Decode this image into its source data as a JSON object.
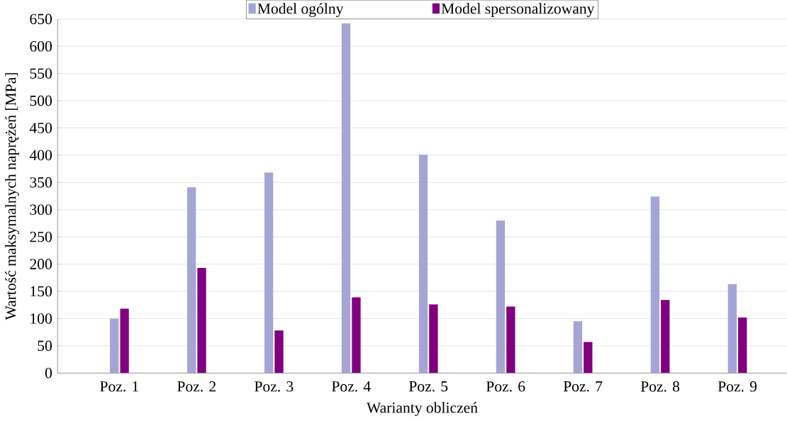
{
  "chart_data": {
    "type": "bar",
    "xlabel": "Warianty obliczeń",
    "ylabel": "Wartość maksymalnych naprężeń [MPa]",
    "categories": [
      "Poz. 1",
      "Poz. 2",
      "Poz. 3",
      "Poz. 4",
      "Poz. 5",
      "Poz. 6",
      "Poz. 7",
      "Poz. 8",
      "Poz. 9"
    ],
    "series": [
      {
        "name": "Model ogólny",
        "color": "#a5a5d5",
        "values": [
          100,
          341,
          368,
          642,
          401,
          280,
          95,
          324,
          163
        ]
      },
      {
        "name": "Model spersonalizowany",
        "color": "#800080",
        "values": [
          118,
          193,
          78,
          139,
          126,
          122,
          57,
          134,
          102
        ]
      }
    ],
    "ylim": [
      0,
      650
    ],
    "yticks": [
      0,
      50,
      100,
      150,
      200,
      250,
      300,
      350,
      400,
      450,
      500,
      550,
      600,
      650
    ],
    "grid": "y",
    "legend": "top"
  }
}
